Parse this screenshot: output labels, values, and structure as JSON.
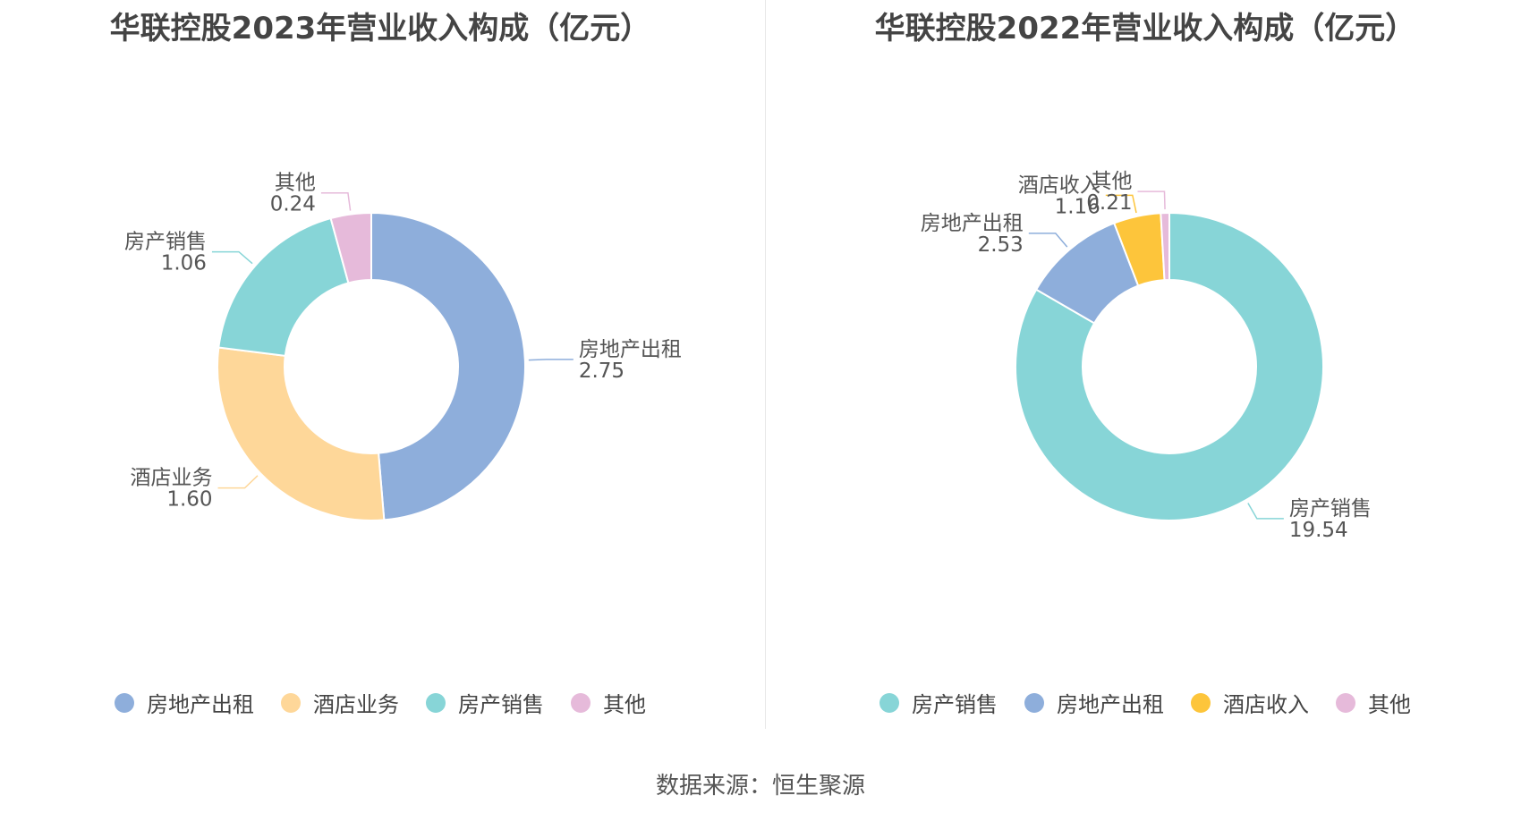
{
  "source": "数据来源：恒生聚源",
  "colors": {
    "rental": "#8EAEDB",
    "hotel": "#FED799",
    "hotel_2022": "#FDC53B",
    "sales": "#87D5D7",
    "other": "#E6BADA"
  },
  "chart_data": [
    {
      "type": "pie",
      "donut": true,
      "title": "华联控股2023年营业收入构成（亿元）",
      "slices": [
        {
          "label": "房地产出租",
          "value": 2.75,
          "display": "2.75",
          "color": "#8EAEDB"
        },
        {
          "label": "酒店业务",
          "value": 1.6,
          "display": "1.60",
          "color": "#FED799"
        },
        {
          "label": "房产销售",
          "value": 1.06,
          "display": "1.06",
          "color": "#87D5D7"
        },
        {
          "label": "其他",
          "value": 0.24,
          "display": "0.24",
          "color": "#E6BADA"
        }
      ],
      "legend_position": "bottom"
    },
    {
      "type": "pie",
      "donut": true,
      "title": "华联控股2022年营业收入构成（亿元）",
      "slices": [
        {
          "label": "房产销售",
          "value": 19.54,
          "display": "19.54",
          "color": "#87D5D7"
        },
        {
          "label": "房地产出租",
          "value": 2.53,
          "display": "2.53",
          "color": "#8EAEDB"
        },
        {
          "label": "酒店收入",
          "value": 1.16,
          "display": "1.16",
          "color": "#FDC53B"
        },
        {
          "label": "其他",
          "value": 0.21,
          "display": "0.21",
          "color": "#E6BADA"
        }
      ],
      "legend_position": "bottom"
    }
  ]
}
